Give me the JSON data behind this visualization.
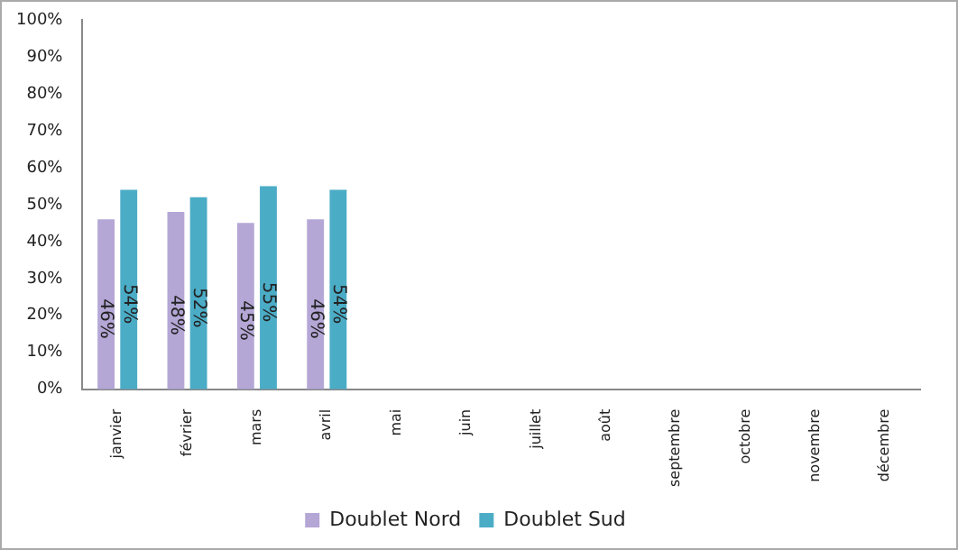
{
  "chart_data": {
    "type": "bar",
    "categories": [
      "janvier",
      "février",
      "mars",
      "avril",
      "mai",
      "juin",
      "juillet",
      "août",
      "septembre",
      "octobre",
      "novembre",
      "décembre"
    ],
    "series": [
      {
        "name": "Doublet Nord",
        "color": "#b4a7d6",
        "values": [
          46,
          48,
          45,
          46,
          null,
          null,
          null,
          null,
          null,
          null,
          null,
          null
        ],
        "value_labels": [
          "46%",
          "48%",
          "45%",
          "46%",
          null,
          null,
          null,
          null,
          null,
          null,
          null,
          null
        ]
      },
      {
        "name": "Doublet Sud",
        "color": "#4bacc6",
        "values": [
          54,
          52,
          55,
          54,
          null,
          null,
          null,
          null,
          null,
          null,
          null,
          null
        ],
        "value_labels": [
          "54%",
          "52%",
          "55%",
          "54%",
          null,
          null,
          null,
          null,
          null,
          null,
          null,
          null
        ]
      }
    ],
    "ylim": [
      0,
      100
    ],
    "yticks": [
      {
        "value": 0,
        "label": "0%"
      },
      {
        "value": 10,
        "label": "10%"
      },
      {
        "value": 20,
        "label": "20%"
      },
      {
        "value": 30,
        "label": "30%"
      },
      {
        "value": 40,
        "label": "40%"
      },
      {
        "value": 50,
        "label": "50%"
      },
      {
        "value": 60,
        "label": "60%"
      },
      {
        "value": 70,
        "label": "70%"
      },
      {
        "value": 80,
        "label": "80%"
      },
      {
        "value": 90,
        "label": "90%"
      },
      {
        "value": 100,
        "label": "100%"
      }
    ],
    "grid": false,
    "legend": "bottom"
  }
}
